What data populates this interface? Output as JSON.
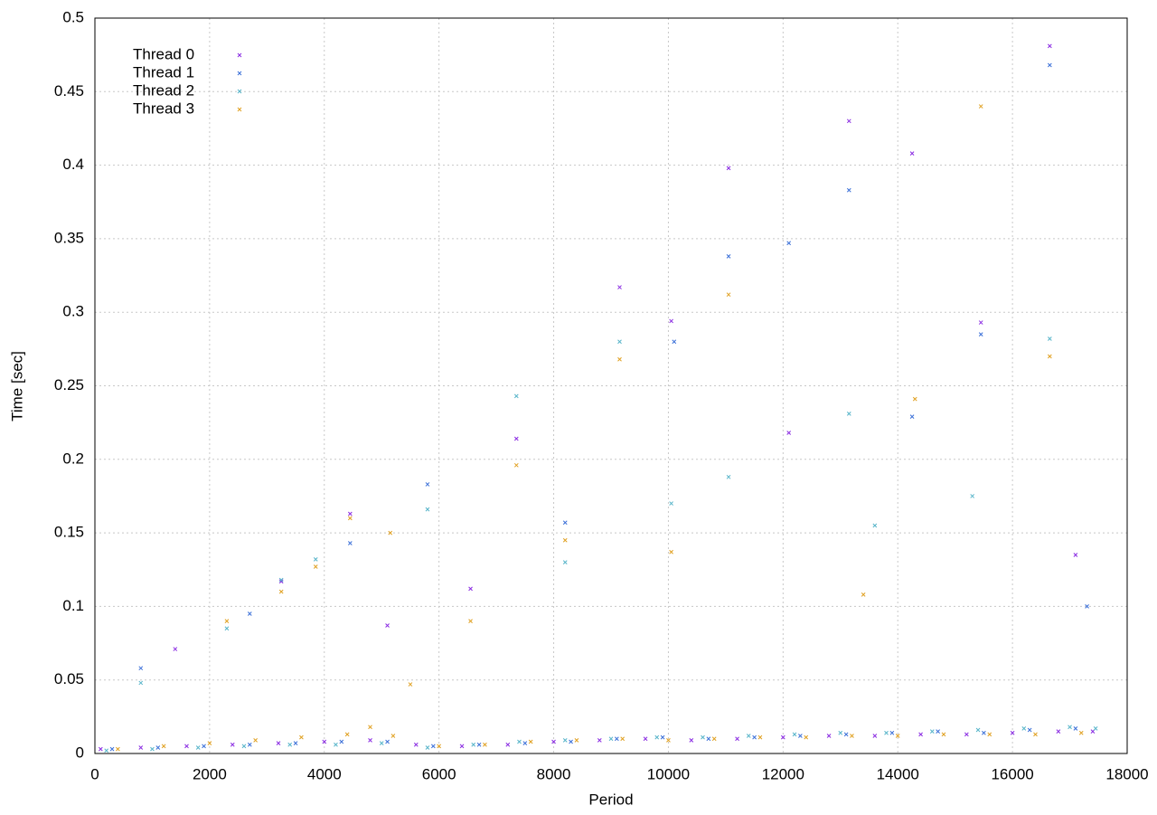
{
  "chart_data": {
    "type": "scatter",
    "x_label": "Period",
    "y_label": "Time [sec]",
    "xlim": [
      0,
      18000
    ],
    "ylim": [
      0,
      0.5
    ],
    "xticks": [
      0,
      2000,
      4000,
      6000,
      8000,
      10000,
      12000,
      14000,
      16000,
      18000
    ],
    "yticks": [
      0,
      0.05,
      0.1,
      0.15,
      0.2,
      0.25,
      0.3,
      0.35,
      0.4,
      0.45,
      0.5
    ],
    "grid": true,
    "legend": "top-left",
    "series": [
      {
        "name": "Thread 0",
        "color": "#8a2be2",
        "x": [
          100,
          800,
          1600,
          2400,
          3200,
          4000,
          4800,
          5600,
          6400,
          7200,
          8000,
          8800,
          9600,
          10400,
          11200,
          12000,
          12800,
          13600,
          14400,
          15200,
          16000,
          16800,
          17400,
          1400,
          3250,
          4450,
          5100,
          6550,
          7350,
          9150,
          10050,
          11050,
          12100,
          13150,
          14250,
          15450,
          16650,
          17100
        ],
        "values": [
          0.003,
          0.004,
          0.005,
          0.006,
          0.007,
          0.008,
          0.009,
          0.006,
          0.005,
          0.006,
          0.008,
          0.009,
          0.01,
          0.009,
          0.01,
          0.011,
          0.012,
          0.012,
          0.013,
          0.013,
          0.014,
          0.015,
          0.015,
          0.071,
          0.117,
          0.163,
          0.087,
          0.112,
          0.214,
          0.317,
          0.294,
          0.398,
          0.218,
          0.43,
          0.408,
          0.293,
          0.481,
          0.135
        ]
      },
      {
        "name": "Thread 1",
        "color": "#3a6fd8",
        "x": [
          300,
          1100,
          1900,
          2700,
          3500,
          4300,
          5100,
          5900,
          6700,
          7500,
          8300,
          9100,
          9900,
          10700,
          11500,
          12300,
          13100,
          13900,
          14700,
          15500,
          16300,
          17100,
          800,
          2700,
          4450,
          5800,
          8200,
          10100,
          11050,
          12100,
          13150,
          14250,
          15450,
          16650,
          17300
        ],
        "values": [
          0.003,
          0.004,
          0.005,
          0.006,
          0.007,
          0.008,
          0.008,
          0.005,
          0.006,
          0.007,
          0.008,
          0.01,
          0.011,
          0.01,
          0.011,
          0.012,
          0.013,
          0.014,
          0.015,
          0.014,
          0.016,
          0.017,
          0.058,
          0.095,
          0.143,
          0.183,
          0.157,
          0.28,
          0.338,
          0.347,
          0.383,
          0.229,
          0.285,
          0.468,
          0.1
        ]
      },
      {
        "name": "Thread 2",
        "color": "#56b4c9",
        "x": [
          200,
          1000,
          1800,
          2600,
          3400,
          4200,
          5000,
          5800,
          6600,
          7400,
          8200,
          9000,
          9800,
          10600,
          11400,
          12200,
          13000,
          13800,
          14600,
          15400,
          16200,
          17000,
          17450,
          800,
          2300,
          3250,
          3850,
          5800,
          7350,
          8200,
          9150,
          10050,
          11050,
          13150,
          13600,
          15300,
          16650
        ],
        "values": [
          0.002,
          0.003,
          0.004,
          0.005,
          0.006,
          0.006,
          0.007,
          0.004,
          0.006,
          0.008,
          0.009,
          0.01,
          0.011,
          0.011,
          0.012,
          0.013,
          0.014,
          0.014,
          0.015,
          0.016,
          0.017,
          0.018,
          0.017,
          0.048,
          0.085,
          0.118,
          0.132,
          0.166,
          0.243,
          0.13,
          0.28,
          0.17,
          0.188,
          0.231,
          0.155,
          0.175,
          0.282
        ]
      },
      {
        "name": "Thread 3",
        "color": "#e0a020",
        "x": [
          400,
          1200,
          2000,
          2800,
          3600,
          4400,
          4800,
          5200,
          6000,
          6800,
          7600,
          8400,
          9200,
          10000,
          10800,
          11600,
          12400,
          13200,
          14000,
          14800,
          15600,
          16400,
          17200,
          2300,
          3250,
          3850,
          4450,
          5150,
          5500,
          6550,
          7350,
          8200,
          9150,
          10050,
          11050,
          13400,
          14300,
          15450,
          16650
        ],
        "values": [
          0.003,
          0.005,
          0.007,
          0.009,
          0.011,
          0.013,
          0.018,
          0.012,
          0.005,
          0.006,
          0.008,
          0.009,
          0.01,
          0.009,
          0.01,
          0.011,
          0.011,
          0.012,
          0.012,
          0.013,
          0.013,
          0.013,
          0.014,
          0.09,
          0.11,
          0.127,
          0.16,
          0.15,
          0.047,
          0.09,
          0.196,
          0.145,
          0.268,
          0.137,
          0.312,
          0.108,
          0.241,
          0.44,
          0.27
        ]
      }
    ]
  }
}
